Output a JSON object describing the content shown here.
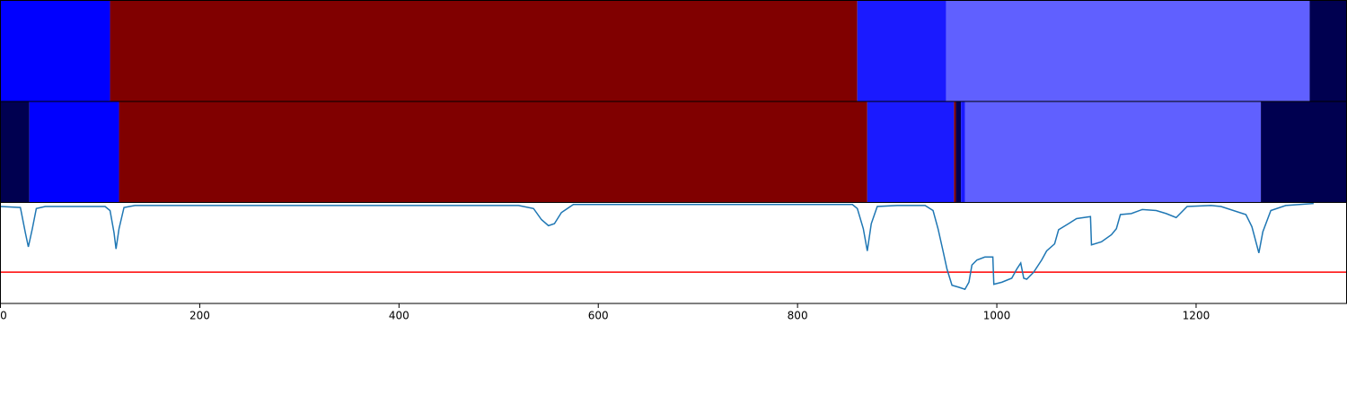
{
  "chart_data": [
    {
      "type": "segments",
      "xlim": [
        0,
        1351
      ],
      "segments": [
        {
          "start": 0,
          "end": 110,
          "color": "#0000ff"
        },
        {
          "start": 110,
          "end": 860,
          "color": "#800000"
        },
        {
          "start": 860,
          "end": 949,
          "color": "#1a1aff"
        },
        {
          "start": 949,
          "end": 1314,
          "color": "#6060ff"
        },
        {
          "start": 1314,
          "end": 1351,
          "color": "#000050"
        }
      ]
    },
    {
      "type": "segments",
      "xlim": [
        0,
        1351
      ],
      "segments": [
        {
          "start": 0,
          "end": 29,
          "color": "#000050"
        },
        {
          "start": 29,
          "end": 119,
          "color": "#0000ff"
        },
        {
          "start": 119,
          "end": 870,
          "color": "#800000"
        },
        {
          "start": 870,
          "end": 957,
          "color": "#1a1aff"
        },
        {
          "start": 957,
          "end": 959,
          "color": "#800000"
        },
        {
          "start": 959,
          "end": 964,
          "color": "#000050"
        },
        {
          "start": 964,
          "end": 968,
          "color": "#1a1aff"
        },
        {
          "start": 968,
          "end": 1265,
          "color": "#6060ff"
        },
        {
          "start": 1265,
          "end": 1351,
          "color": "#000050"
        }
      ]
    },
    {
      "type": "line",
      "xlim": [
        0,
        1351
      ],
      "ylim": [
        0,
        1
      ],
      "xticks": [
        0,
        200,
        400,
        600,
        800,
        1000,
        1200
      ],
      "threshold": 0.31,
      "threshold_color": "#ff0000",
      "series": [
        {
          "color": "#1f77b4",
          "x": [
            0,
            20,
            25,
            28,
            32,
            36,
            45,
            105,
            110,
            114,
            116,
            119,
            124,
            135,
            520,
            535,
            543,
            550,
            556,
            563,
            575,
            855,
            860,
            866,
            870,
            874,
            880,
            900,
            928,
            936,
            941,
            946,
            950,
            955,
            962,
            968,
            972,
            975,
            980,
            988,
            996,
            997,
            1005,
            1015,
            1020,
            1024,
            1027,
            1030,
            1037,
            1045,
            1050,
            1058,
            1062,
            1072,
            1080,
            1094,
            1095,
            1105,
            1115,
            1120,
            1124,
            1135,
            1146,
            1160,
            1170,
            1180,
            1191,
            1215,
            1225,
            1250,
            1256,
            1263,
            1267,
            1275,
            1290,
            1318
          ],
          "values": [
            0.96,
            0.95,
            0.7,
            0.56,
            0.74,
            0.94,
            0.96,
            0.96,
            0.92,
            0.7,
            0.54,
            0.74,
            0.95,
            0.97,
            0.97,
            0.94,
            0.83,
            0.77,
            0.79,
            0.9,
            0.98,
            0.98,
            0.94,
            0.74,
            0.52,
            0.79,
            0.96,
            0.97,
            0.97,
            0.92,
            0.74,
            0.52,
            0.34,
            0.18,
            0.16,
            0.14,
            0.21,
            0.38,
            0.43,
            0.46,
            0.46,
            0.19,
            0.21,
            0.25,
            0.34,
            0.4,
            0.25,
            0.24,
            0.31,
            0.43,
            0.52,
            0.59,
            0.73,
            0.79,
            0.84,
            0.86,
            0.58,
            0.61,
            0.68,
            0.74,
            0.88,
            0.89,
            0.93,
            0.92,
            0.89,
            0.85,
            0.96,
            0.97,
            0.96,
            0.88,
            0.76,
            0.5,
            0.71,
            0.92,
            0.97,
            0.99
          ]
        }
      ]
    }
  ]
}
